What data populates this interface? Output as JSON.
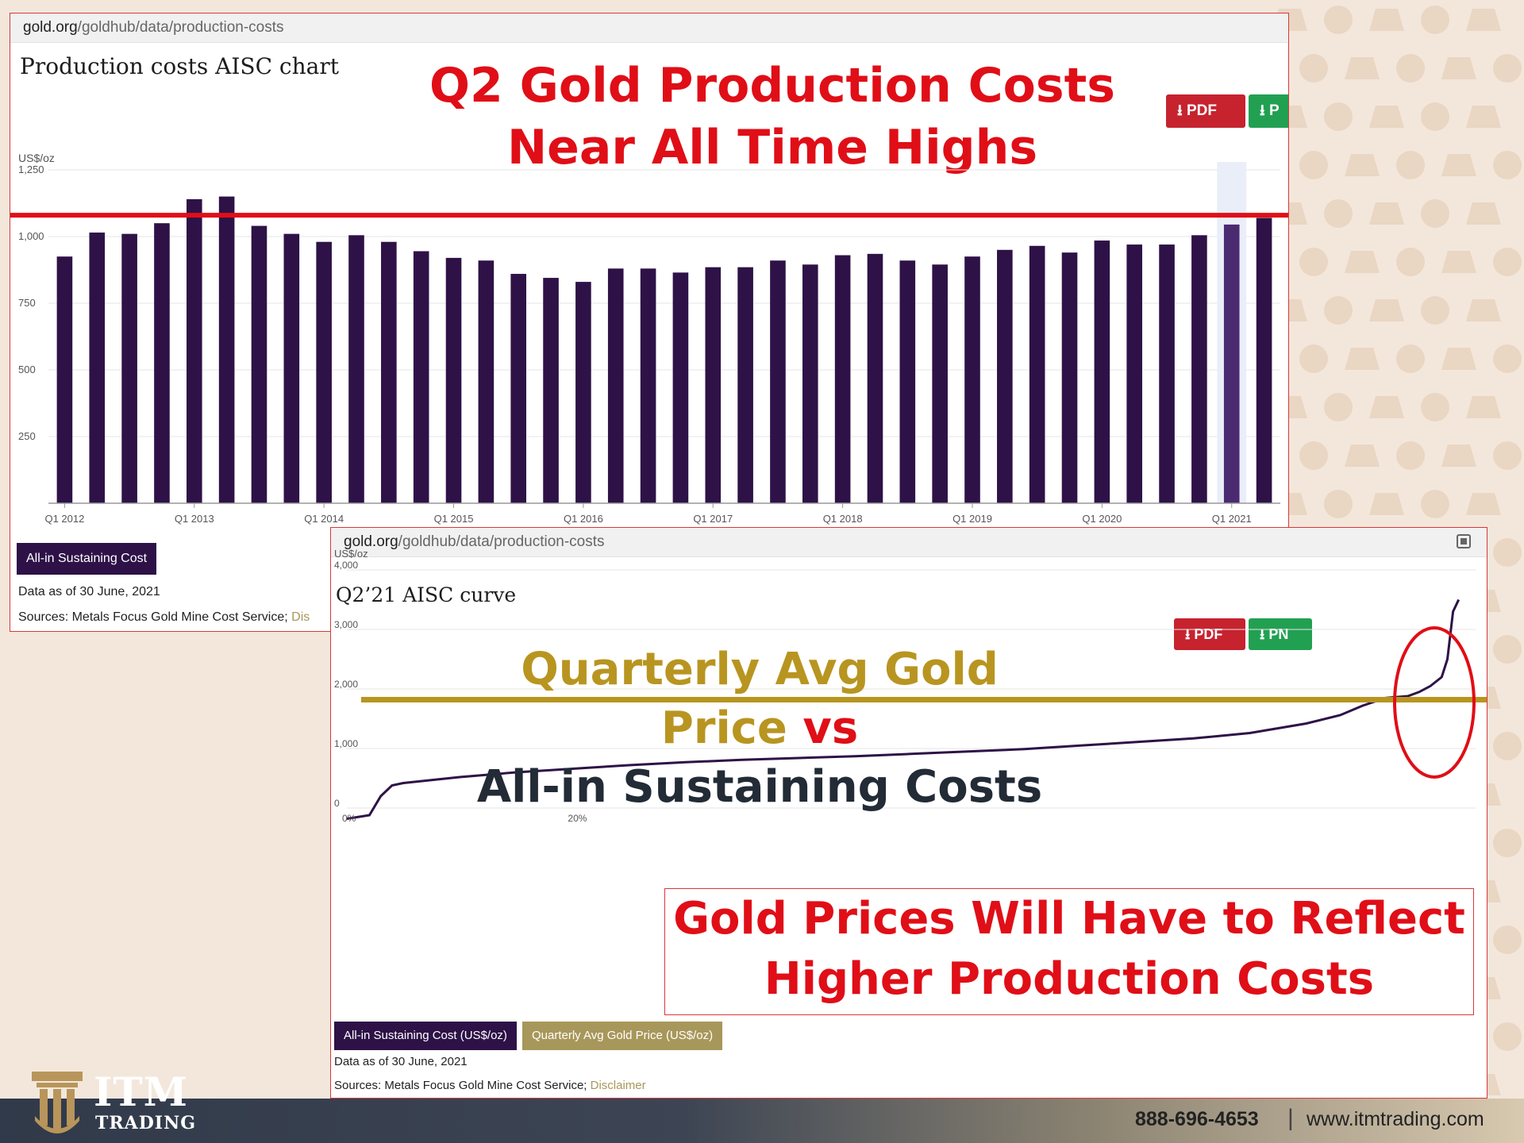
{
  "panel1": {
    "url_domain": "gold.org",
    "url_path": "/goldhub/data/production-costs",
    "title": "Production costs AISC chart",
    "headline_line1": "Q2 Gold Production Costs",
    "headline_line2": "Near All Time Highs",
    "pdf_label": "PDF",
    "png_label": "P",
    "legend_label": "All-in Sustaining Cost",
    "data_as_of": "Data as of 30 June, 2021",
    "sources": "Sources: Metals Focus Gold Mine Cost Service;",
    "disclaimer": "Dis"
  },
  "panel2": {
    "url_domain": "gold.org",
    "url_path": "/goldhub/data/production-costs",
    "title": "Q2’21 AISC curve",
    "headline_part1": "Quarterly Avg Gold Price",
    "headline_part2": " vs",
    "headline_line2": "All-in Sustaining Costs",
    "pdf_label": "PDF",
    "png_label": "PN",
    "callout_line1": "Gold Prices Will Have to Reflect",
    "callout_line2": "Higher Production Costs",
    "legend_label1": "All-in Sustaining Cost (US$/oz)",
    "legend_label2": "Quarterly Avg Gold Price (US$/oz)",
    "data_as_of": "Data as of 30 June, 2021",
    "sources": "Sources: Metals Focus Gold Mine Cost Service;",
    "disclaimer": "Disclaimer"
  },
  "footer": {
    "brand_line1": "ITM",
    "brand_line2": "TRADING",
    "phone": "888-696-4653",
    "separator": "|",
    "website": "www.itmtrading.com"
  },
  "colors": {
    "bar": "#2e1247",
    "bar_highlight": "#4b2a72",
    "red": "#e00e17",
    "gold": "#b89520",
    "dark_text": "#222b36",
    "legend_gold": "#a8975a"
  },
  "chart_data": [
    {
      "type": "bar",
      "title": "Production costs AISC chart",
      "ylabel": "US$/oz",
      "ylim": [
        0,
        1250
      ],
      "yticks": [
        250,
        500,
        750,
        "1,000",
        "1,250"
      ],
      "xtick_labels": [
        "Q1 2012",
        "Q1 2013",
        "Q1 2014",
        "Q1 2015",
        "Q1 2016",
        "Q1 2017",
        "Q1 2018",
        "Q1 2019",
        "Q1 2020",
        "Q1 2021"
      ],
      "categories": [
        "Q1 2012",
        "Q2 2012",
        "Q3 2012",
        "Q4 2012",
        "Q1 2013",
        "Q2 2013",
        "Q3 2013",
        "Q4 2013",
        "Q1 2014",
        "Q2 2014",
        "Q3 2014",
        "Q4 2014",
        "Q1 2015",
        "Q2 2015",
        "Q3 2015",
        "Q4 2015",
        "Q1 2016",
        "Q2 2016",
        "Q3 2016",
        "Q4 2016",
        "Q1 2017",
        "Q2 2017",
        "Q3 2017",
        "Q4 2017",
        "Q1 2018",
        "Q2 2018",
        "Q3 2018",
        "Q4 2018",
        "Q1 2019",
        "Q2 2019",
        "Q3 2019",
        "Q4 2019",
        "Q1 2020",
        "Q2 2020",
        "Q3 2020",
        "Q4 2020",
        "Q1 2021",
        "Q2 2021"
      ],
      "series": [
        {
          "name": "All-in Sustaining Cost",
          "values": [
            925,
            1015,
            1010,
            1050,
            1140,
            1150,
            1040,
            1010,
            980,
            1005,
            980,
            945,
            920,
            910,
            860,
            845,
            830,
            880,
            880,
            865,
            885,
            885,
            910,
            895,
            930,
            935,
            910,
            895,
            925,
            950,
            965,
            940,
            985,
            970,
            970,
            1005,
            1045,
            1070
          ]
        }
      ],
      "highlighted_category": "Q1 2021",
      "reference_line": 1080,
      "grid": true
    },
    {
      "type": "line",
      "title": "Q2’21 AISC curve",
      "ylabel": "US$/oz",
      "ylim": [
        -200,
        4000
      ],
      "yticks": [
        0,
        "1,000",
        "2,000",
        "3,000",
        "4,000"
      ],
      "xtick_labels": [
        "0%",
        "20%"
      ],
      "x_unit": "%",
      "series": [
        {
          "name": "All-in Sustaining Cost (US$/oz)",
          "x": [
            0,
            2,
            3,
            4,
            5,
            7,
            10,
            15,
            20,
            25,
            30,
            35,
            40,
            45,
            50,
            55,
            60,
            65,
            70,
            75,
            80,
            85,
            88,
            90,
            92,
            94,
            95,
            96,
            97,
            97.5,
            98,
            98.5
          ],
          "y": [
            -180,
            -120,
            200,
            380,
            420,
            460,
            520,
            600,
            660,
            720,
            770,
            810,
            840,
            870,
            910,
            950,
            990,
            1050,
            1110,
            1170,
            1260,
            1420,
            1560,
            1720,
            1850,
            1880,
            1950,
            2050,
            2200,
            2500,
            3300,
            3500
          ]
        },
        {
          "name": "Quarterly Avg Gold Price (US$/oz)",
          "x": [
            0,
            100
          ],
          "y": [
            1820,
            1820
          ]
        }
      ],
      "grid": true
    }
  ]
}
